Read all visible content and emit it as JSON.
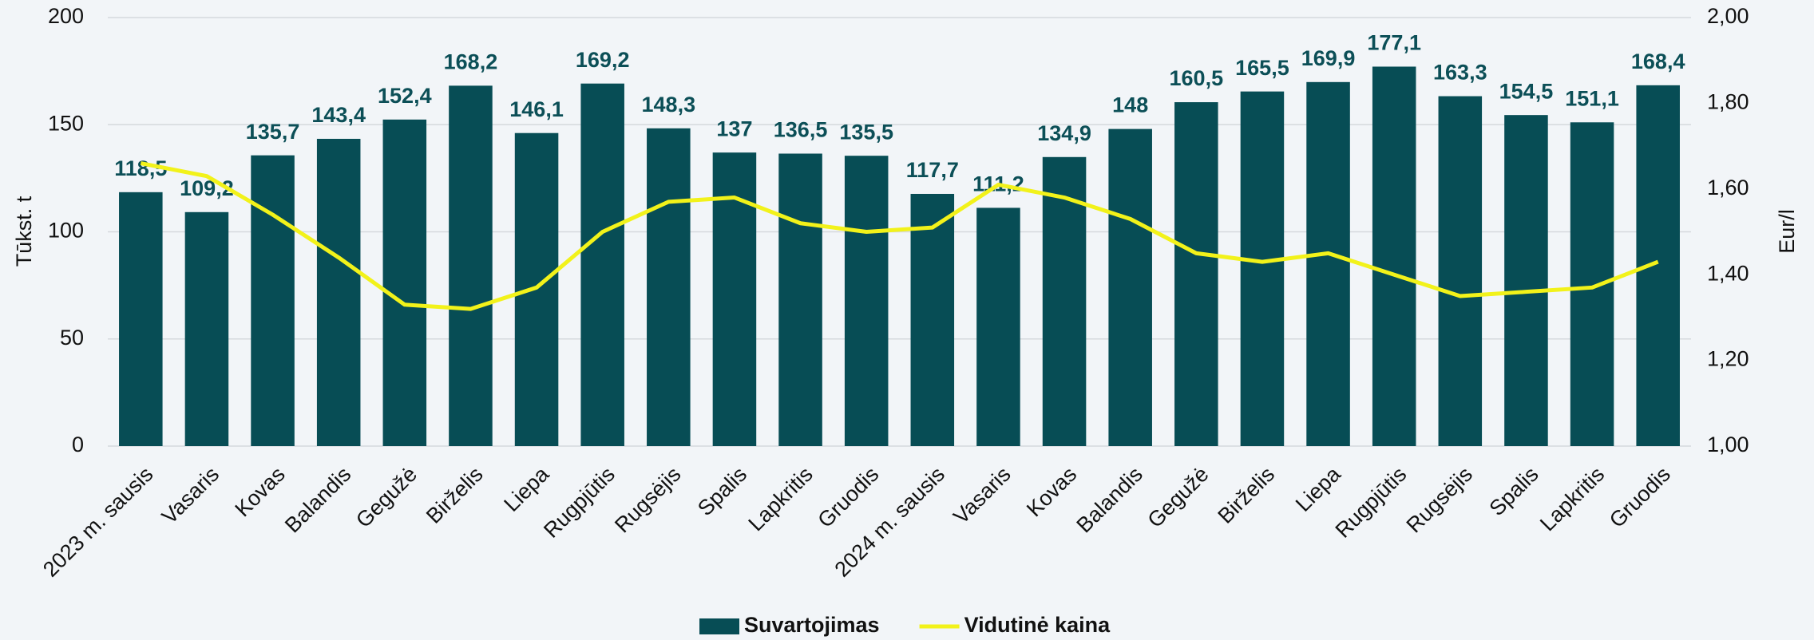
{
  "chart_data": {
    "type": "bar",
    "categories": [
      "2023 m. sausis",
      "Vasaris",
      "Kovas",
      "Balandis",
      "Gegužė",
      "Birželis",
      "Liepa",
      "Rugpjūtis",
      "Rugsėjis",
      "Spalis",
      "Lapkritis",
      "Gruodis",
      "2024 m. sausis",
      "Vasaris",
      "Kovas",
      "Balandis",
      "Gegužė",
      "Birželis",
      "Liepa",
      "Rugpjūtis",
      "Rugsėjis",
      "Spalis",
      "Lapkritis",
      "Gruodis"
    ],
    "series": [
      {
        "name": "Suvartojimas",
        "type": "bar",
        "color": "#074d55",
        "values": [
          118.5,
          109.2,
          135.7,
          143.4,
          152.4,
          168.2,
          146.1,
          169.2,
          148.3,
          137,
          136.5,
          135.5,
          117.7,
          111.2,
          134.9,
          148,
          160.5,
          165.5,
          169.9,
          177.1,
          163.3,
          154.5,
          151.1,
          168.4
        ],
        "value_labels": [
          "118,5",
          "109,2",
          "135,7",
          "143,4",
          "152,4",
          "168,2",
          "146,1",
          "169,2",
          "148,3",
          "137",
          "136,5",
          "135,5",
          "117,7",
          "111,2",
          "134,9",
          "148",
          "160,5",
          "165,5",
          "169,9",
          "177,1",
          "163,3",
          "154,5",
          "151,1",
          "168,4"
        ]
      },
      {
        "name": "Vidutinė kaina",
        "type": "line",
        "axis": "y2",
        "color": "#f2f21a",
        "values": [
          1.66,
          1.63,
          1.54,
          1.44,
          1.33,
          1.32,
          1.37,
          1.5,
          1.57,
          1.58,
          1.52,
          1.5,
          1.51,
          1.61,
          1.58,
          1.53,
          1.45,
          1.43,
          1.45,
          1.4,
          1.35,
          1.36,
          1.37,
          1.43
        ]
      }
    ],
    "ylabel": "Tūkst. t",
    "y2label": "Eur/l",
    "ylim": [
      0,
      200
    ],
    "yticks": [
      0,
      50,
      100,
      150,
      200
    ],
    "y2lim": [
      1,
      2
    ],
    "y2ticks": [
      {
        "value": 1,
        "label": "1,00"
      },
      {
        "value": 1.2,
        "label": "1,20"
      },
      {
        "value": 1.4,
        "label": "1,40"
      },
      {
        "value": 1.6,
        "label": "1,60"
      },
      {
        "value": 1.8,
        "label": "1,80"
      },
      {
        "value": 2,
        "label": "2,00"
      }
    ],
    "grid": true,
    "legend": "bottom"
  }
}
